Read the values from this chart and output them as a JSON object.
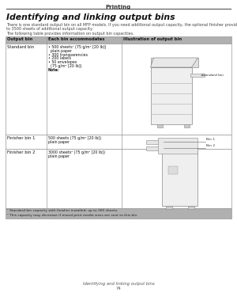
{
  "page_title": "Printing",
  "section_title": "Identifying and linking output bins",
  "intro_text1": "There is one standard output bin on all MFP models. If you need additional output capacity, the optional finisher provides up",
  "intro_text2": "to 3500 sheets of additional output capacity.",
  "table_intro": "The following table provides information on output bin capacities.",
  "header_row": [
    "Output bin",
    "Each bin accommodates",
    "Illustration of output bin"
  ],
  "header_bg": "#b0b0b0",
  "row1_bin": "Standard bin",
  "row1_lines": [
    "• 500 sheets¹ (75 g/m² [20 lb])",
    "  plain paper",
    "• 300 transparencies",
    "• 200 labels",
    "• 50 envelopes",
    "  (75 g/m² [20 lb])",
    "Note:"
  ],
  "row1_note_bold": true,
  "row2_bin": "Finisher bin 1",
  "row2_lines": [
    "500 sheets (75 g/m² [20 lb])",
    "plain paper"
  ],
  "row3_bin": "Finisher bin 2",
  "row3_lines": [
    "3000 sheets² (75 g/m² [20 lb])",
    "plain paper"
  ],
  "std_bin_label": "Standard bin",
  "bin1_label": "Bin 1",
  "bin2_label": "Bin 2",
  "footnote1": "¹ Standard bin capacity with finisher installed: up to 300 sheets.",
  "footnote2": "² This capacity may decrease if mixed print media sizes are sent to this bin.",
  "footnote_bg": "#b0b0b0",
  "footer_line1": "Identifying and linking output bins",
  "footer_line2": "74",
  "bg_color": "#ffffff",
  "table_border": "#999999",
  "line_color": "#555555"
}
